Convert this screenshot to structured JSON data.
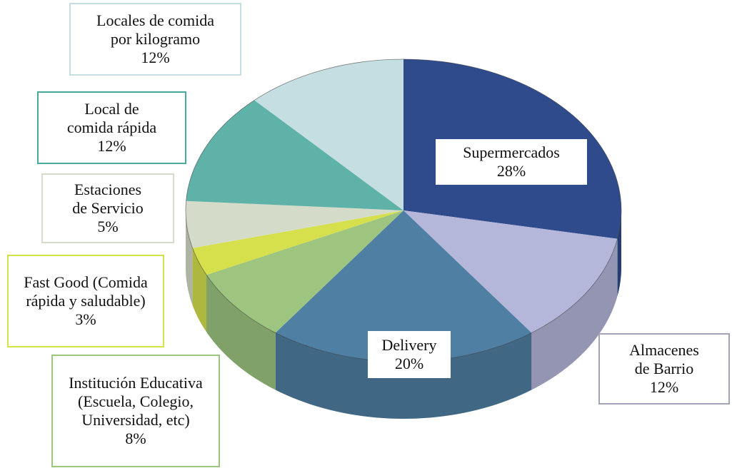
{
  "chart_data": {
    "type": "pie3d",
    "categories": [
      "Supermercados",
      "Almacenes de Barrio",
      "Delivery",
      "Institución Educativa (Escuela, Colegio, Universidad, etc)",
      "Fast Good (Comida rápida y saludable)",
      "Estaciones de Servicio",
      "Local de comida rápida",
      "Locales de comida por kilogramo"
    ],
    "values": [
      28,
      12,
      20,
      8,
      3,
      5,
      12,
      12
    ],
    "value_labels": [
      "28%",
      "12%",
      "20%",
      "8%",
      "3%",
      "5%",
      "12%",
      "12%"
    ],
    "colors": [
      "#2f4b8c",
      "#b4b6da",
      "#4f7fa3",
      "#9dc57f",
      "#d5e04c",
      "#d4dcc9",
      "#5fb2a7",
      "#c5dee1"
    ]
  }
}
